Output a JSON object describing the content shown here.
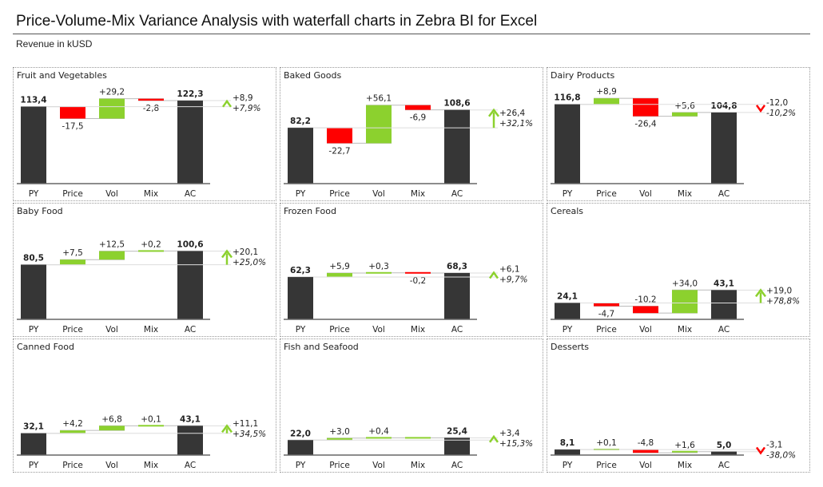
{
  "header": {
    "title": "Price-Volume-Mix Variance Analysis with waterfall charts in Zebra BI for Excel",
    "subtitle": "Revenue in kUSD"
  },
  "colors": {
    "total": "#363636",
    "positive": "#8CD12E",
    "negative": "#FF0000",
    "connector": "#BBBBBB",
    "axis": "#666666"
  },
  "chart_data": [
    {
      "type": "waterfall",
      "title": "Fruit and Vegetables",
      "categories": [
        "PY",
        "Price",
        "Vol",
        "Mix",
        "AC"
      ],
      "values": [
        113.4,
        -17.5,
        29.2,
        -2.8,
        122.3
      ],
      "labels": [
        "113,4",
        "-17,5",
        "+29,2",
        "-2,8",
        "122,3"
      ],
      "delta": "+8,9",
      "delta_pct": "+7,9%",
      "arrow": "chevron-up"
    },
    {
      "type": "waterfall",
      "title": "Baked Goods",
      "categories": [
        "PY",
        "Price",
        "Vol",
        "Mix",
        "AC"
      ],
      "values": [
        82.2,
        -22.7,
        56.1,
        -6.9,
        108.6
      ],
      "labels": [
        "82,2",
        "-22,7",
        "+56,1",
        "-6,9",
        "108,6"
      ],
      "delta": "+26,4",
      "delta_pct": "+32,1%",
      "arrow": "arrow-up"
    },
    {
      "type": "waterfall",
      "title": "Dairy Products",
      "categories": [
        "PY",
        "Price",
        "Vol",
        "Mix",
        "AC"
      ],
      "values": [
        116.8,
        8.9,
        -26.4,
        5.6,
        104.8
      ],
      "labels": [
        "116,8",
        "+8,9",
        "-26,4",
        "+5,6",
        "104,8"
      ],
      "delta": "-12,0",
      "delta_pct": "-10,2%",
      "arrow": "chevron-down"
    },
    {
      "type": "waterfall",
      "title": "Baby Food",
      "categories": [
        "PY",
        "Price",
        "Vol",
        "Mix",
        "AC"
      ],
      "values": [
        80.5,
        7.5,
        12.5,
        0.2,
        100.6
      ],
      "labels": [
        "80,5",
        "+7,5",
        "+12,5",
        "+0,2",
        "100,6"
      ],
      "delta": "+20,1",
      "delta_pct": "+25,0%",
      "arrow": "arrow-up"
    },
    {
      "type": "waterfall",
      "title": "Frozen Food",
      "categories": [
        "PY",
        "Price",
        "Vol",
        "Mix",
        "AC"
      ],
      "values": [
        62.3,
        5.9,
        0.3,
        -0.2,
        68.3
      ],
      "labels": [
        "62,3",
        "+5,9",
        "+0,3",
        "-0,2",
        "68,3"
      ],
      "delta": "+6,1",
      "delta_pct": "+9,7%",
      "arrow": "chevron-up"
    },
    {
      "type": "waterfall",
      "title": "Cereals",
      "categories": [
        "PY",
        "Price",
        "Vol",
        "Mix",
        "AC"
      ],
      "values": [
        24.1,
        -4.7,
        -10.2,
        34.0,
        43.1
      ],
      "labels": [
        "24,1",
        "-4,7",
        "-10,2",
        "+34,0",
        "43,1"
      ],
      "delta": "+19,0",
      "delta_pct": "+78,8%",
      "arrow": "arrow-up"
    },
    {
      "type": "waterfall",
      "title": "Canned Food",
      "categories": [
        "PY",
        "Price",
        "Vol",
        "Mix",
        "AC"
      ],
      "values": [
        32.1,
        4.2,
        6.8,
        0.1,
        43.1
      ],
      "labels": [
        "32,1",
        "+4,2",
        "+6,8",
        "+0,1",
        "43,1"
      ],
      "delta": "+11,1",
      "delta_pct": "+34,5%",
      "arrow": "arrow-up"
    },
    {
      "type": "waterfall",
      "title": "Fish and Seafood",
      "categories": [
        "PY",
        "Price",
        "Vol",
        "Mix",
        "AC"
      ],
      "values": [
        22.0,
        3.0,
        0.4,
        -0.0,
        25.4
      ],
      "labels": [
        "22,0",
        "+3,0",
        "+0,4",
        "",
        "25,4"
      ],
      "delta": "+3,4",
      "delta_pct": "+15,3%",
      "arrow": "chevron-up"
    },
    {
      "type": "waterfall",
      "title": "Desserts",
      "categories": [
        "PY",
        "Price",
        "Vol",
        "Mix",
        "AC"
      ],
      "values": [
        8.1,
        0.1,
        -4.8,
        1.6,
        5.0
      ],
      "labels": [
        "8,1",
        "+0,1",
        "-4,8",
        "+1,6",
        "5,0"
      ],
      "delta": "-3,1",
      "delta_pct": "-38,0%",
      "arrow": "chevron-down"
    }
  ]
}
